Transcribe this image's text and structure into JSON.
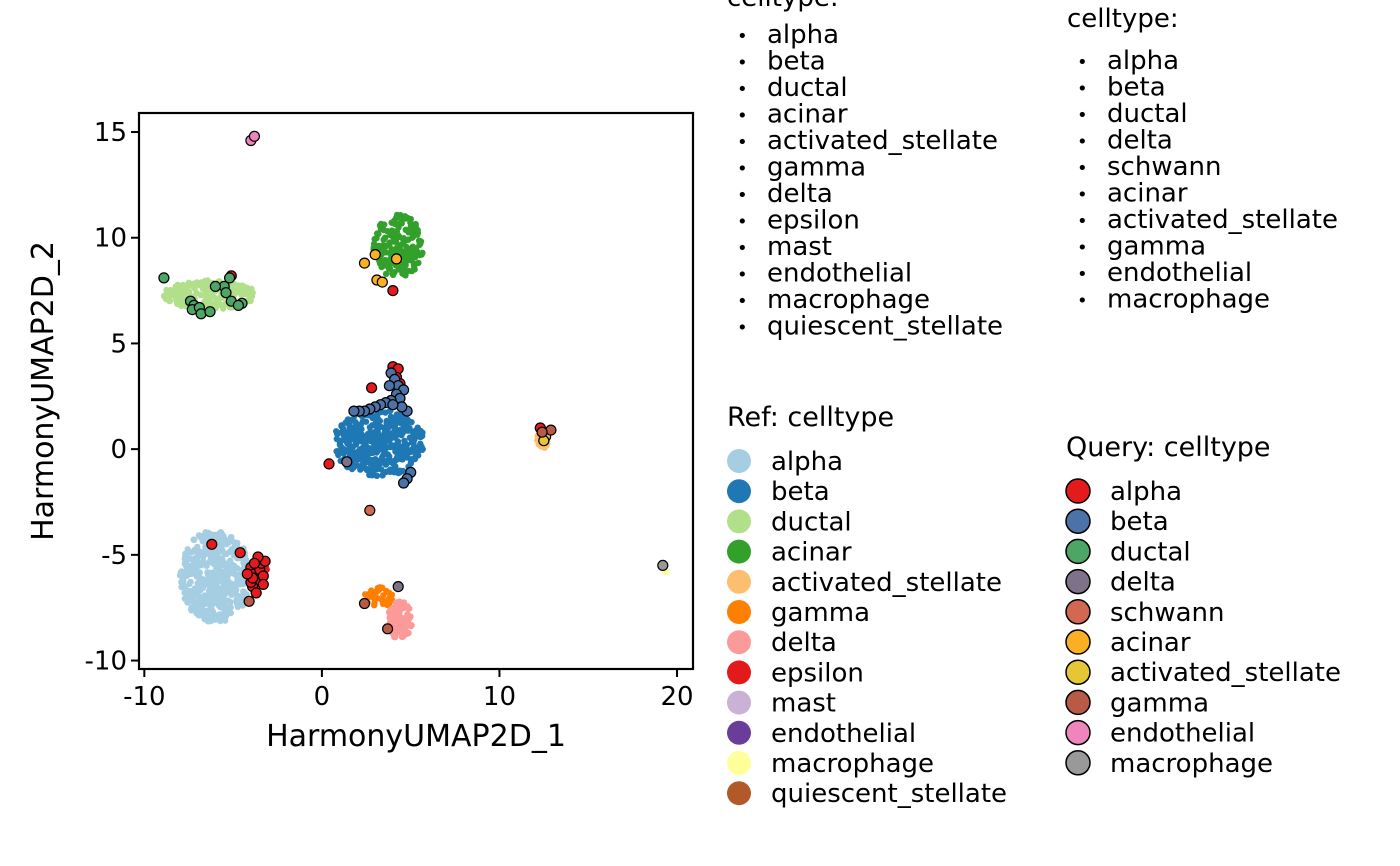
{
  "chart_data": {
    "type": "scatter",
    "xlabel": "HarmonyUMAP2D_1",
    "ylabel": "HarmonyUMAP2D_2",
    "xlim": [
      -10.3,
      20.9
    ],
    "ylim": [
      -10.4,
      15.9
    ],
    "xticks": [
      -10,
      0,
      10,
      20
    ],
    "yticks": [
      -10,
      -5,
      0,
      5,
      10,
      15
    ],
    "xtick_labels": [
      "-10",
      "0",
      "10",
      "20"
    ],
    "ytick_labels": [
      "-10",
      "-5",
      "0",
      "5",
      "10",
      "15"
    ],
    "ref_clusters": [
      {
        "name": "alpha",
        "color": "#A6CEE3",
        "cx": -6.0,
        "cy": -6.0,
        "rx": 2.0,
        "ry": 2.2,
        "n": 460
      },
      {
        "name": "beta",
        "color": "#1F78B4",
        "cx": 3.2,
        "cy": 0.3,
        "rx": 2.6,
        "ry": 1.6,
        "n": 420
      },
      {
        "name": "ductal",
        "color": "#B2DF8A",
        "cx": -6.3,
        "cy": 7.3,
        "rx": 2.6,
        "ry": 0.7,
        "n": 200
      },
      {
        "name": "acinar",
        "color": "#33A02C",
        "cx": 4.3,
        "cy": 9.6,
        "rx": 1.4,
        "ry": 1.5,
        "n": 170
      },
      {
        "name": "activated_stellate",
        "color": "#FDBF6F",
        "cx": 12.4,
        "cy": 0.6,
        "rx": 0.4,
        "ry": 0.6,
        "n": 25
      },
      {
        "name": "gamma",
        "color": "#FF7F00",
        "cx": 3.2,
        "cy": -7.0,
        "rx": 0.8,
        "ry": 0.5,
        "n": 40
      },
      {
        "name": "delta",
        "color": "#FB9A99",
        "cx": 4.4,
        "cy": -8.1,
        "rx": 0.7,
        "ry": 0.9,
        "n": 110
      },
      {
        "name": "epsilon",
        "color": "#E31A1C",
        "cx": -3.5,
        "cy": -5.9,
        "rx": 0.5,
        "ry": 0.6,
        "n": 8
      },
      {
        "name": "mast",
        "color": "#CAB2D6",
        "cx": 0,
        "cy": 0,
        "rx": 0,
        "ry": 0,
        "n": 0
      },
      {
        "name": "endothelial",
        "color": "#6A3D9A",
        "cx": 0,
        "cy": 0,
        "rx": 0,
        "ry": 0,
        "n": 0
      },
      {
        "name": "macrophage",
        "color": "#FFFF99",
        "cx": 19.4,
        "cy": -5.8,
        "rx": 0.1,
        "ry": 0.1,
        "n": 3
      },
      {
        "name": "quiescent_stellate",
        "color": "#B15928",
        "cx": 0,
        "cy": 0,
        "rx": 0,
        "ry": 0,
        "n": 0
      }
    ],
    "query_points": [
      {
        "name": "alpha",
        "points": [
          [
            -4.0,
            -5.6
          ],
          [
            -3.8,
            -5.9
          ],
          [
            -3.6,
            -6.2
          ],
          [
            -3.9,
            -6.5
          ],
          [
            -3.5,
            -5.7
          ],
          [
            -3.3,
            -6.0
          ],
          [
            -3.7,
            -6.8
          ],
          [
            -4.0,
            -6.3
          ],
          [
            -3.4,
            -5.4
          ],
          [
            -3.2,
            -5.3
          ],
          [
            -3.6,
            -5.1
          ],
          [
            -3.9,
            -6.1
          ],
          [
            -3.3,
            -6.4
          ],
          [
            -3.8,
            -5.4
          ],
          [
            -4.2,
            -5.9
          ],
          [
            -6.2,
            -4.5
          ],
          [
            -4.6,
            -4.9
          ],
          [
            4.0,
            3.9
          ],
          [
            4.3,
            3.8
          ],
          [
            4.2,
            3.4
          ],
          [
            4.4,
            3.1
          ],
          [
            4.0,
            7.5
          ],
          [
            2.8,
            2.9
          ],
          [
            12.3,
            1.0
          ],
          [
            0.4,
            -0.7
          ],
          [
            -5.1,
            8.2
          ]
        ]
      },
      {
        "name": "beta",
        "points": [
          [
            3.9,
            3.6
          ],
          [
            4.1,
            3.3
          ],
          [
            4.3,
            3.0
          ],
          [
            3.8,
            3.0
          ],
          [
            4.6,
            2.8
          ],
          [
            4.2,
            2.6
          ],
          [
            4.4,
            2.4
          ],
          [
            3.9,
            2.3
          ],
          [
            3.6,
            2.2
          ],
          [
            3.3,
            2.1
          ],
          [
            3.0,
            2.0
          ],
          [
            2.7,
            1.9
          ],
          [
            2.4,
            1.8
          ],
          [
            2.1,
            1.8
          ],
          [
            1.8,
            1.8
          ],
          [
            4.8,
            1.8
          ],
          [
            4.5,
            2.0
          ],
          [
            4.0,
            2.1
          ],
          [
            5.0,
            -1.1
          ],
          [
            4.8,
            -1.4
          ],
          [
            4.6,
            -1.6
          ]
        ]
      },
      {
        "name": "ductal",
        "points": [
          [
            -8.9,
            8.1
          ],
          [
            -5.2,
            8.1
          ],
          [
            -5.5,
            7.7
          ],
          [
            -6.0,
            7.7
          ],
          [
            -5.4,
            7.4
          ],
          [
            -5.1,
            7.0
          ],
          [
            -4.5,
            6.9
          ],
          [
            -4.7,
            6.8
          ],
          [
            -7.4,
            7.0
          ],
          [
            -7.2,
            6.8
          ],
          [
            -7.3,
            6.6
          ],
          [
            -6.9,
            6.7
          ],
          [
            -6.8,
            6.4
          ],
          [
            -6.3,
            6.5
          ]
        ]
      },
      {
        "name": "delta",
        "points": [
          [
            1.4,
            -0.6
          ],
          [
            4.3,
            -6.5
          ]
        ]
      },
      {
        "name": "schwann",
        "points": [
          [
            2.7,
            -2.9
          ]
        ]
      },
      {
        "name": "acinar",
        "points": [
          [
            2.4,
            8.8
          ],
          [
            3.0,
            9.2
          ],
          [
            4.2,
            9.0
          ],
          [
            3.1,
            8.0
          ],
          [
            3.4,
            7.9
          ]
        ]
      },
      {
        "name": "activated_stellate",
        "points": [
          [
            12.6,
            0.6
          ],
          [
            12.5,
            0.4
          ]
        ]
      },
      {
        "name": "gamma",
        "points": [
          [
            2.4,
            -7.3
          ],
          [
            3.7,
            -8.5
          ],
          [
            12.9,
            0.9
          ],
          [
            12.4,
            0.8
          ],
          [
            -4.1,
            -7.2
          ]
        ]
      },
      {
        "name": "endothelial",
        "points": [
          [
            -4.0,
            14.6
          ],
          [
            -3.8,
            14.8
          ]
        ]
      },
      {
        "name": "macrophage",
        "points": [
          [
            19.2,
            -5.5
          ]
        ]
      }
    ]
  },
  "legends": {
    "top_left": {
      "title": "celltype:",
      "bullet": "•",
      "items": [
        "alpha",
        "beta",
        "ductal",
        "acinar",
        "activated_stellate",
        "gamma",
        "delta",
        "epsilon",
        "mast",
        "endothelial",
        "macrophage",
        "quiescent_stellate"
      ]
    },
    "top_right": {
      "title": "celltype:",
      "bullet": "•",
      "items": [
        "alpha",
        "beta",
        "ductal",
        "delta",
        "schwann",
        "acinar",
        "activated_stellate",
        "gamma",
        "endothelial",
        "macrophage"
      ]
    },
    "ref": {
      "title": "Ref: celltype",
      "items": [
        {
          "label": "alpha",
          "color": "#A6CEE3"
        },
        {
          "label": "beta",
          "color": "#1F78B4"
        },
        {
          "label": "ductal",
          "color": "#B2DF8A"
        },
        {
          "label": "acinar",
          "color": "#33A02C"
        },
        {
          "label": "activated_stellate",
          "color": "#FDBF6F"
        },
        {
          "label": "gamma",
          "color": "#FF7F00"
        },
        {
          "label": "delta",
          "color": "#FB9A99"
        },
        {
          "label": "epsilon",
          "color": "#E31A1C"
        },
        {
          "label": "mast",
          "color": "#CAB2D6"
        },
        {
          "label": "endothelial",
          "color": "#6A3D9A"
        },
        {
          "label": "macrophage",
          "color": "#FFFF99"
        },
        {
          "label": "quiescent_stellate",
          "color": "#B15928"
        }
      ]
    },
    "query": {
      "title": "Query: celltype",
      "items": [
        {
          "label": "alpha",
          "color": "#E41A1C"
        },
        {
          "label": "beta",
          "color": "#4C72A8"
        },
        {
          "label": "ductal",
          "color": "#4DA566"
        },
        {
          "label": "delta",
          "color": "#7F7189"
        },
        {
          "label": "schwann",
          "color": "#D1684F"
        },
        {
          "label": "acinar",
          "color": "#FBB023"
        },
        {
          "label": "activated_stellate",
          "color": "#E5C637"
        },
        {
          "label": "gamma",
          "color": "#B85A45"
        },
        {
          "label": "endothelial",
          "color": "#EE85BC"
        },
        {
          "label": "macrophage",
          "color": "#999999"
        }
      ]
    }
  }
}
